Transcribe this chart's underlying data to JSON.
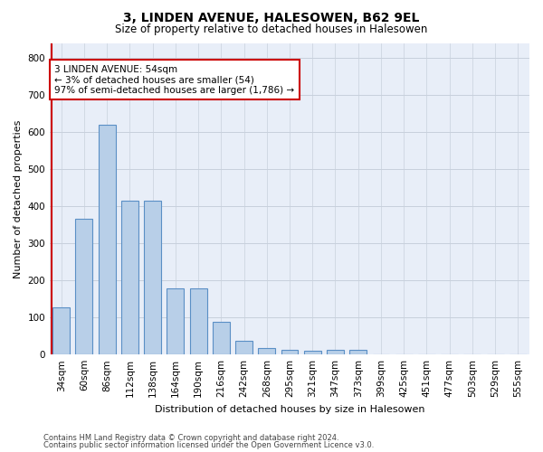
{
  "title": "3, LINDEN AVENUE, HALESOWEN, B62 9EL",
  "subtitle": "Size of property relative to detached houses in Halesowen",
  "xlabel": "Distribution of detached houses by size in Halesowen",
  "ylabel": "Number of detached properties",
  "bar_values": [
    128,
    365,
    620,
    415,
    415,
    178,
    178,
    88,
    37,
    18,
    12,
    10,
    12,
    12,
    0,
    0,
    0,
    0,
    0,
    0,
    0
  ],
  "bin_labels": [
    "34sqm",
    "60sqm",
    "86sqm",
    "112sqm",
    "138sqm",
    "164sqm",
    "190sqm",
    "216sqm",
    "242sqm",
    "268sqm",
    "295sqm",
    "321sqm",
    "347sqm",
    "373sqm",
    "399sqm",
    "425sqm",
    "451sqm",
    "477sqm",
    "503sqm",
    "529sqm",
    "555sqm"
  ],
  "bar_color": "#b8cfe8",
  "bar_edge_color": "#5a8fc5",
  "vline_color": "#cc0000",
  "vline_x": -0.42,
  "annotation_text": "3 LINDEN AVENUE: 54sqm\n← 3% of detached houses are smaller (54)\n97% of semi-detached houses are larger (1,786) →",
  "annotation_box_facecolor": "#ffffff",
  "annotation_box_edgecolor": "#cc0000",
  "ylim": [
    0,
    840
  ],
  "yticks": [
    0,
    100,
    200,
    300,
    400,
    500,
    600,
    700,
    800
  ],
  "footer_line1": "Contains HM Land Registry data © Crown copyright and database right 2024.",
  "footer_line2": "Contains public sector information licensed under the Open Government Licence v3.0.",
  "bg_color": "#ffffff",
  "plot_bg_color": "#e8eef8",
  "grid_color": "#c8d0dc",
  "title_fontsize": 10,
  "subtitle_fontsize": 8.5,
  "ylabel_fontsize": 8,
  "xlabel_fontsize": 8,
  "tick_fontsize": 7.5,
  "annotation_fontsize": 7.5,
  "footer_fontsize": 6
}
